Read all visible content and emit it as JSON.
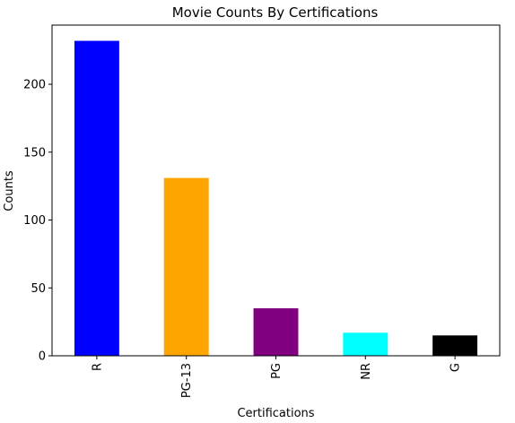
{
  "chart_data": {
    "type": "bar",
    "title": "Movie Counts By Certifications",
    "xlabel": "Certifications",
    "ylabel": "Counts",
    "categories": [
      "R",
      "PG-13",
      "PG",
      "NR",
      "G"
    ],
    "values": [
      232,
      131,
      35,
      17,
      15
    ],
    "colors": [
      "#0000ff",
      "#ffa500",
      "#800080",
      "#00ffff",
      "#000000"
    ],
    "yticks": [
      0,
      50,
      100,
      150,
      200
    ],
    "ylim": [
      0,
      243.6
    ],
    "grid": false,
    "legend": "none"
  }
}
